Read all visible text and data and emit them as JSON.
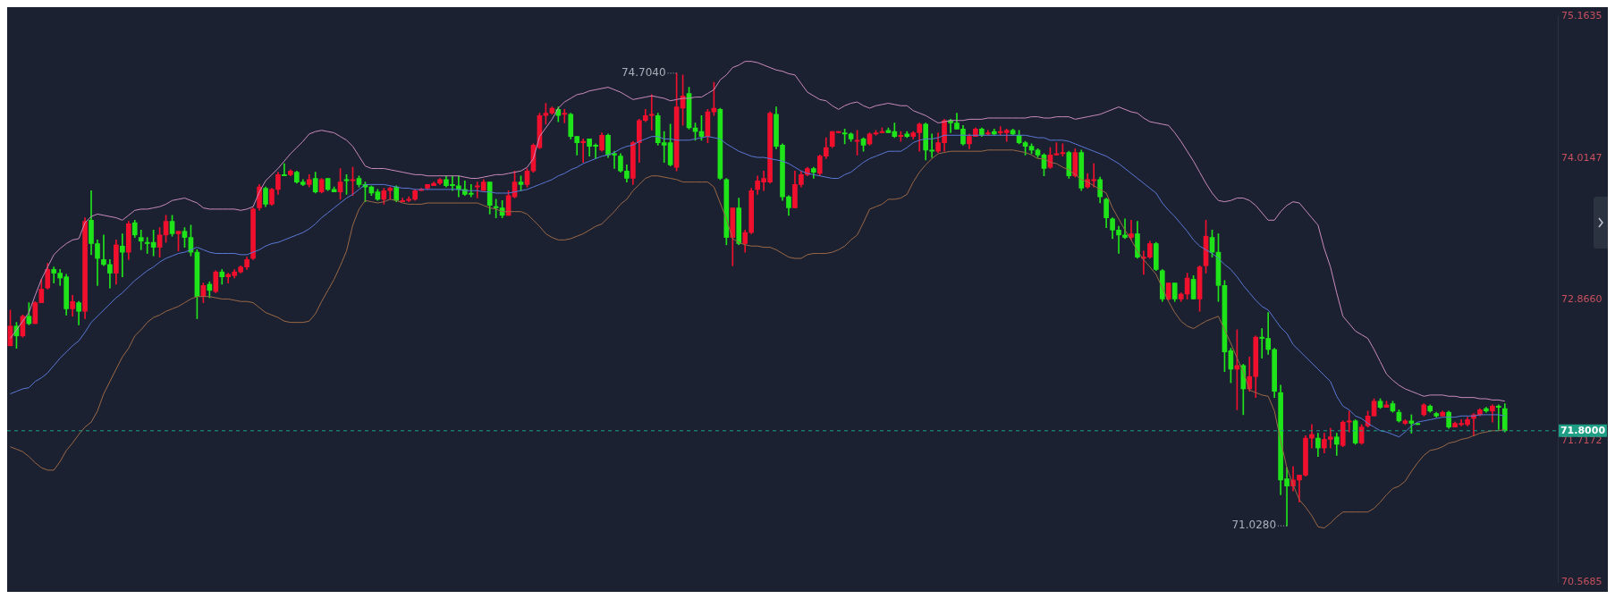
{
  "chart_data": {
    "type": "candlestick",
    "categories": [
      null,
      null,
      null,
      null,
      null,
      null,
      null,
      null,
      null,
      null,
      null,
      null,
      null,
      null,
      null,
      null,
      null,
      null,
      null,
      null,
      null,
      null,
      null,
      null,
      null,
      null,
      null,
      null,
      null,
      null,
      null,
      null,
      null,
      null,
      null,
      null,
      null,
      null,
      null,
      null,
      null,
      null,
      null,
      null,
      null,
      null,
      null,
      null,
      null,
      null,
      null,
      null,
      null,
      null,
      null,
      null,
      null,
      null,
      null,
      null,
      null,
      null,
      null,
      null,
      null,
      null,
      null,
      null,
      null,
      null,
      null,
      null,
      null,
      null,
      null,
      null,
      null,
      null,
      null,
      null,
      null,
      null,
      null,
      null,
      null,
      null,
      null,
      null,
      null,
      null,
      null,
      null,
      null,
      null,
      null,
      null,
      null,
      null,
      null,
      null,
      null,
      null,
      null,
      null,
      null,
      null,
      null,
      null,
      null,
      null,
      null,
      null,
      null,
      null,
      null,
      null,
      null,
      null,
      null,
      null,
      null,
      null,
      null,
      null,
      null,
      null,
      null,
      null,
      null,
      null,
      null,
      null,
      null,
      null,
      null,
      null,
      null,
      null,
      null,
      null,
      null,
      null,
      null,
      null,
      null,
      null,
      null,
      null,
      null,
      null,
      null,
      null,
      null,
      null,
      null,
      null,
      null,
      null,
      null,
      null,
      null,
      null,
      null,
      null,
      null,
      null,
      null,
      null,
      null,
      null,
      null,
      null,
      null,
      null,
      null,
      null,
      null,
      null,
      null,
      null,
      null,
      null,
      null,
      null,
      null,
      null,
      null,
      null,
      null,
      null,
      null,
      null,
      null,
      null,
      null,
      null,
      null,
      null,
      null,
      null,
      null,
      null,
      null,
      null,
      null,
      null,
      null,
      null,
      null,
      null,
      null,
      null,
      null,
      null,
      null,
      null,
      null,
      null,
      null,
      null,
      null,
      null,
      null,
      null,
      null,
      null,
      null,
      null,
      null,
      null,
      null,
      null,
      null,
      null,
      null,
      null,
      null,
      null,
      null,
      null,
      null
    ],
    "colors": [
      "#f0102d",
      "#1fe41a",
      "#f0102d",
      "#1fe41a",
      "#f0102d",
      "#f0102d",
      "#f0102d",
      "#1fe41a",
      "#1fe41a",
      "#1fe41a",
      "#f0102d",
      "#1fe41a",
      "#f0102d",
      "#1fe41a",
      "#1fe41a",
      "#1fe41a",
      "#1fe41a",
      "#f0102d",
      "#1fe41a",
      "#f0102d",
      "#1fe41a",
      "#1fe41a",
      "#1fe41a",
      "#1fe41a",
      "#f0102d",
      "#f0102d",
      "#1fe41a",
      "#f0102d",
      "#1fe41a",
      "#1fe41a",
      "#1fe41a",
      "#f0102d",
      "#1fe41a",
      "#f0102d",
      "#1fe41a",
      "#f0102d",
      "#f0102d",
      "#f0102d",
      "#f0102d",
      "#f0102d",
      "#f0102d",
      "#1fe41a",
      "#f0102d",
      "#f0102d",
      "#1fe41a",
      "#f0102d",
      "#1fe41a",
      "#1fe41a",
      "#f0102d",
      "#1fe41a",
      "#f0102d",
      "#1fe41a",
      "#1fe41a",
      "#f0102d",
      "#1fe41a",
      "#f0102d",
      "#1fe41a",
      "#1fe41a",
      "#1fe41a",
      "#1fe41a",
      "#f0102d",
      "#f0102d",
      "#1fe41a",
      "#f0102d",
      "#f0102d",
      "#f0102d",
      "#f0102d",
      "#f0102d",
      "#f0102d",
      "#f0102d",
      "#1fe41a",
      "#1fe41a",
      "#1fe41a",
      "#1fe41a",
      "#1fe41a",
      "#f0102d",
      "#f0102d",
      "#1fe41a",
      "#1fe41a",
      "#1fe41a",
      "#f0102d",
      "#f0102d",
      "#1fe41a",
      "#f0102d",
      "#f0102d",
      "#f0102d",
      "#f0102d",
      "#f0102d",
      "#1fe41a",
      "#f0102d",
      "#1fe41a",
      "#1fe41a",
      "#f0102d",
      "#1fe41a",
      "#1fe41a",
      "#f0102d",
      "#1fe41a",
      "#1fe41a",
      "#1fe41a",
      "#1fe41a",
      "#f0102d",
      "#f0102d",
      "#f0102d",
      "#f0102d",
      "#1fe41a",
      "#1fe41a",
      "#1fe41a",
      "#f0102d",
      "#f0102d",
      "#1fe41a",
      "#1fe41a",
      "#1fe41a",
      "#f0102d",
      "#f0102d",
      "#1fe41a",
      "#1fe41a",
      "#f0102d",
      "#1fe41a",
      "#f0102d",
      "#f0102d",
      "#f0102d",
      "#f0102d",
      "#f0102d",
      "#1fe41a",
      "#1fe41a",
      "#1fe41a",
      "#f0102d",
      "#f0102d",
      "#f0102d",
      "#1fe41a",
      "#f0102d",
      "#f0102d",
      "#f0102d",
      "#f0102d",
      "#1fe41a",
      "#1fe41a",
      "#f0102d",
      "#1fe41a",
      "#f0102d",
      "#f0102d",
      "#f0102d",
      "#1fe41a",
      "#1fe41a",
      "#f0102d",
      "#1fe41a",
      "#f0102d",
      "#f0102d",
      "#1fe41a",
      "#1fe41a",
      "#f0102d",
      "#f0102d",
      "#1fe41a",
      "#1fe41a",
      "#1fe41a",
      "#f0102d",
      "#f0102d",
      "#1fe41a",
      "#f0102d",
      "#1fe41a",
      "#f0102d",
      "#f0102d",
      "#1fe41a",
      "#1fe41a",
      "#1fe41a",
      "#1fe41a",
      "#1fe41a",
      "#1fe41a",
      "#f0102d",
      "#f0102d",
      "#f0102d",
      "#1fe41a",
      "#f0102d",
      "#1fe41a",
      "#f0102d",
      "#f0102d",
      "#1fe41a",
      "#1fe41a",
      "#1fe41a",
      "#1fe41a",
      "#1fe41a",
      "#f0102d",
      "#1fe41a",
      "#f0102d",
      "#f0102d",
      "#1fe41a",
      "#1fe41a",
      "#f0102d",
      "#1fe41a",
      "#f0102d",
      "#f0102d",
      "#1fe41a",
      "#f0102d",
      "#f0102d",
      "#1fe41a",
      "#1fe41a",
      "#1fe41a",
      "#1fe41a",
      "#f0102d",
      "#1fe41a",
      "#f0102d",
      "#f0102d",
      "#1fe41a",
      "#1fe41a",
      "#1fe41a",
      "#1fe41a",
      "#1fe41a",
      "#f0102d",
      "#f0102d",
      "#f0102d",
      "#f0102d",
      "#1fe41a",
      "#f0102d",
      "#f0102d",
      "#1fe41a",
      "#f0102d",
      "#f0102d",
      "#1fe41a",
      "#f0102d",
      "#f0102d",
      "#f0102d",
      "#1fe41a",
      "#f0102d",
      "#1fe41a",
      "#1fe41a",
      "#f0102d",
      "#1fe41a",
      "#1fe41a",
      "#f0102d",
      "#1fe41a",
      "#1fe41a",
      "#f0102d",
      "#1fe41a",
      "#f0102d",
      "#f0102d",
      "#f0102d",
      "#f0102d",
      "#f0102d",
      "#1fe41a",
      "#f0102d",
      "#1fe41a",
      "#1fe41a"
    ],
    "ohlc": [
      [
        72.49,
        72.78,
        72.49,
        72.65
      ],
      [
        72.65,
        72.68,
        72.47,
        72.57
      ],
      [
        72.57,
        72.74,
        72.56,
        72.73
      ],
      [
        72.73,
        72.84,
        72.66,
        72.67
      ],
      [
        72.67,
        72.85,
        72.67,
        72.84
      ],
      [
        72.84,
        73.03,
        72.84,
        72.95
      ],
      [
        72.96,
        73.16,
        72.95,
        73.11
      ],
      [
        73.11,
        73.13,
        73.0,
        73.08
      ],
      [
        73.08,
        73.11,
        72.98,
        73.04
      ],
      [
        73.05,
        73.07,
        72.74,
        72.79
      ],
      [
        72.79,
        72.9,
        72.73,
        72.85
      ],
      [
        72.84,
        72.85,
        72.66,
        72.77
      ],
      [
        72.77,
        73.53,
        72.71,
        73.5
      ],
      [
        73.51,
        73.75,
        73.23,
        73.32
      ],
      [
        73.32,
        73.35,
        72.98,
        73.2
      ],
      [
        73.19,
        73.39,
        73.14,
        73.15
      ],
      [
        73.15,
        73.19,
        72.96,
        73.08
      ],
      [
        73.08,
        73.35,
        72.99,
        73.31
      ],
      [
        73.3,
        73.4,
        73.05,
        73.25
      ],
      [
        73.25,
        73.5,
        73.19,
        73.48
      ],
      [
        73.49,
        73.51,
        73.37,
        73.39
      ],
      [
        73.37,
        73.43,
        73.27,
        73.34
      ],
      [
        73.33,
        73.37,
        73.24,
        73.32
      ],
      [
        73.33,
        73.43,
        73.22,
        73.29
      ],
      [
        73.29,
        73.45,
        73.21,
        73.39
      ],
      [
        73.39,
        73.55,
        73.33,
        73.5
      ],
      [
        73.5,
        73.55,
        73.38,
        73.4
      ],
      [
        73.4,
        73.42,
        73.26,
        73.42
      ],
      [
        73.42,
        73.45,
        73.29,
        73.37
      ],
      [
        73.37,
        73.47,
        73.22,
        73.25
      ],
      [
        73.25,
        73.27,
        72.71,
        72.89
      ],
      [
        72.89,
        73.0,
        72.84,
        72.98
      ],
      [
        72.99,
        73.01,
        72.88,
        72.94
      ],
      [
        72.93,
        73.1,
        72.92,
        73.09
      ],
      [
        73.09,
        73.11,
        72.99,
        73.05
      ],
      [
        73.05,
        73.08,
        73.0,
        73.07
      ],
      [
        73.06,
        73.11,
        73.04,
        73.09
      ],
      [
        73.09,
        73.14,
        73.08,
        73.13
      ],
      [
        73.13,
        73.21,
        73.11,
        73.19
      ],
      [
        73.2,
        73.61,
        73.19,
        73.6
      ],
      [
        73.61,
        73.8,
        73.59,
        73.78
      ],
      [
        73.77,
        73.78,
        73.62,
        73.64
      ],
      [
        73.64,
        73.77,
        73.63,
        73.76
      ],
      [
        73.76,
        73.9,
        73.72,
        73.88
      ],
      [
        73.88,
        73.97,
        73.87,
        73.87
      ],
      [
        73.88,
        73.92,
        73.87,
        73.91
      ],
      [
        73.9,
        73.91,
        73.81,
        73.82
      ],
      [
        73.82,
        73.84,
        73.79,
        73.8
      ],
      [
        73.8,
        73.88,
        73.78,
        73.84
      ],
      [
        73.85,
        73.9,
        73.73,
        73.74
      ],
      [
        73.74,
        73.85,
        73.73,
        73.84
      ],
      [
        73.85,
        73.85,
        73.75,
        73.76
      ],
      [
        73.76,
        73.78,
        73.74,
        73.74
      ],
      [
        73.74,
        73.93,
        73.68,
        73.82
      ],
      [
        73.84,
        73.88,
        73.72,
        73.83
      ],
      [
        73.83,
        73.94,
        73.71,
        73.84
      ],
      [
        73.85,
        73.87,
        73.78,
        73.8
      ],
      [
        73.8,
        73.82,
        73.66,
        73.78
      ],
      [
        73.78,
        73.79,
        73.71,
        73.73
      ],
      [
        73.74,
        73.76,
        73.67,
        73.68
      ],
      [
        73.68,
        73.77,
        73.64,
        73.75
      ],
      [
        73.75,
        73.78,
        73.68,
        73.77
      ],
      [
        73.78,
        73.79,
        73.66,
        73.67
      ],
      [
        73.66,
        73.69,
        73.66,
        73.67
      ],
      [
        73.67,
        73.7,
        73.66,
        73.68
      ],
      [
        73.68,
        73.76,
        73.67,
        73.75
      ],
      [
        73.75,
        73.77,
        73.75,
        73.76
      ],
      [
        73.77,
        73.8,
        73.76,
        73.8
      ],
      [
        73.79,
        73.82,
        73.79,
        73.81
      ],
      [
        73.81,
        73.85,
        73.8,
        73.84
      ],
      [
        73.84,
        73.87,
        73.78,
        73.79
      ],
      [
        73.8,
        73.87,
        73.75,
        73.79
      ],
      [
        73.79,
        73.87,
        73.7,
        73.76
      ],
      [
        73.76,
        73.83,
        73.71,
        73.72
      ],
      [
        73.73,
        73.8,
        73.7,
        73.72
      ],
      [
        73.78,
        73.82,
        73.69,
        73.79
      ],
      [
        73.75,
        73.84,
        73.75,
        73.82
      ],
      [
        73.82,
        73.82,
        73.56,
        73.63
      ],
      [
        73.62,
        73.68,
        73.53,
        73.61
      ],
      [
        73.61,
        73.67,
        73.53,
        73.55
      ],
      [
        73.55,
        73.75,
        73.55,
        73.71
      ],
      [
        73.7,
        73.91,
        73.69,
        73.82
      ],
      [
        73.82,
        73.87,
        73.75,
        73.8
      ],
      [
        73.8,
        73.93,
        73.78,
        73.91
      ],
      [
        73.91,
        74.13,
        73.9,
        74.12
      ],
      [
        74.1,
        74.38,
        74.09,
        74.36
      ],
      [
        74.36,
        74.46,
        74.29,
        74.38
      ],
      [
        74.38,
        74.43,
        74.37,
        74.42
      ],
      [
        74.41,
        74.43,
        74.31,
        74.36
      ],
      [
        74.37,
        74.41,
        74.3,
        74.38
      ],
      [
        74.37,
        74.38,
        74.17,
        74.19
      ],
      [
        74.19,
        74.19,
        74.04,
        74.14
      ],
      [
        74.14,
        74.17,
        73.98,
        74.15
      ],
      [
        74.17,
        74.17,
        74.03,
        74.11
      ],
      [
        74.12,
        74.13,
        74.01,
        74.11
      ],
      [
        74.08,
        74.22,
        74.07,
        74.2
      ],
      [
        74.2,
        74.21,
        74.02,
        74.04
      ],
      [
        74.05,
        74.07,
        73.93,
        74.04
      ],
      [
        74.03,
        74.05,
        73.9,
        73.91
      ],
      [
        73.91,
        73.96,
        73.82,
        73.85
      ],
      [
        73.85,
        74.15,
        73.8,
        74.14
      ],
      [
        74.14,
        74.33,
        73.98,
        74.32
      ],
      [
        74.32,
        74.41,
        74.31,
        74.36
      ],
      [
        74.36,
        74.53,
        74.24,
        74.37
      ],
      [
        74.36,
        74.38,
        74.12,
        74.14
      ],
      [
        74.14,
        74.23,
        73.98,
        74.12
      ],
      [
        74.14,
        74.29,
        73.95,
        73.96
      ],
      [
        73.94,
        74.704,
        73.91,
        74.43
      ],
      [
        74.42,
        74.69,
        74.28,
        74.52
      ],
      [
        74.54,
        74.59,
        74.25,
        74.26
      ],
      [
        74.26,
        74.3,
        74.16,
        74.23
      ],
      [
        74.23,
        74.36,
        74.16,
        74.19
      ],
      [
        74.19,
        74.41,
        74.14,
        74.39
      ],
      [
        74.39,
        74.63,
        74.36,
        74.42
      ],
      [
        74.41,
        74.42,
        73.84,
        73.85
      ],
      [
        73.84,
        73.85,
        73.31,
        73.37
      ],
      [
        73.37,
        73.61,
        73.14,
        73.61
      ],
      [
        73.61,
        73.69,
        73.31,
        73.32
      ],
      [
        73.32,
        73.43,
        73.25,
        73.41
      ],
      [
        73.41,
        73.77,
        73.4,
        73.75
      ],
      [
        73.76,
        73.87,
        73.72,
        73.83
      ],
      [
        73.82,
        73.91,
        73.75,
        73.85
      ],
      [
        73.82,
        74.39,
        73.81,
        74.38
      ],
      [
        74.37,
        74.43,
        74.09,
        74.11
      ],
      [
        74.12,
        74.13,
        73.67,
        73.7
      ],
      [
        73.7,
        73.71,
        73.55,
        73.61
      ],
      [
        73.61,
        73.91,
        73.61,
        73.8
      ],
      [
        73.8,
        73.91,
        73.78,
        73.88
      ],
      [
        73.88,
        73.94,
        73.87,
        73.93
      ],
      [
        73.93,
        73.94,
        73.85,
        73.9
      ],
      [
        73.89,
        74.04,
        73.87,
        74.03
      ],
      [
        74.03,
        74.18,
        74.01,
        74.1
      ],
      [
        74.11,
        74.23,
        74.1,
        74.23
      ],
      [
        74.22,
        74.23,
        74.22,
        74.23
      ],
      [
        74.22,
        74.25,
        74.13,
        74.21
      ],
      [
        74.21,
        74.22,
        74.15,
        74.17
      ],
      [
        74.15,
        74.24,
        74.04,
        74.16
      ],
      [
        74.17,
        74.18,
        74.07,
        74.12
      ],
      [
        74.13,
        74.22,
        74.12,
        74.21
      ],
      [
        74.21,
        74.24,
        74.2,
        74.22
      ],
      [
        74.22,
        74.26,
        74.22,
        74.23
      ],
      [
        74.24,
        74.26,
        74.22,
        74.22
      ],
      [
        74.23,
        74.3,
        74.18,
        74.19
      ],
      [
        74.19,
        74.23,
        74.15,
        74.2
      ],
      [
        74.21,
        74.23,
        74.18,
        74.19
      ],
      [
        74.19,
        74.23,
        74.17,
        74.22
      ],
      [
        74.22,
        74.3,
        74.07,
        74.29
      ],
      [
        74.29,
        74.3,
        74.0,
        74.08
      ],
      [
        74.08,
        74.21,
        74.02,
        74.07
      ],
      [
        74.07,
        74.22,
        74.06,
        74.14
      ],
      [
        74.14,
        74.33,
        74.07,
        74.32
      ],
      [
        74.32,
        74.33,
        74.22,
        74.3
      ],
      [
        74.3,
        74.38,
        74.25,
        74.25
      ],
      [
        74.25,
        74.28,
        74.12,
        74.13
      ],
      [
        74.13,
        74.21,
        74.09,
        74.19
      ],
      [
        74.19,
        74.26,
        74.19,
        74.25
      ],
      [
        74.25,
        74.26,
        74.19,
        74.2
      ],
      [
        74.21,
        74.24,
        74.2,
        74.22
      ],
      [
        74.23,
        74.25,
        74.2,
        74.21
      ],
      [
        74.22,
        74.27,
        74.2,
        74.23
      ],
      [
        74.22,
        74.25,
        74.15,
        74.24
      ],
      [
        74.24,
        74.25,
        74.2,
        74.21
      ],
      [
        74.2,
        74.24,
        74.13,
        74.14
      ],
      [
        74.14,
        74.15,
        74.04,
        74.11
      ],
      [
        74.11,
        74.13,
        74.05,
        74.08
      ],
      [
        74.08,
        74.09,
        74.02,
        74.04
      ],
      [
        74.04,
        74.05,
        73.87,
        73.93
      ],
      [
        73.94,
        74.1,
        73.93,
        74.04
      ],
      [
        74.04,
        74.14,
        74.04,
        74.05
      ],
      [
        74.05,
        74.13,
        74.03,
        74.06
      ],
      [
        74.06,
        74.07,
        73.85,
        73.87
      ],
      [
        73.87,
        74.09,
        73.86,
        74.06
      ],
      [
        74.06,
        74.08,
        73.75,
        73.77
      ],
      [
        73.78,
        73.89,
        73.77,
        73.84
      ],
      [
        73.83,
        73.97,
        73.78,
        73.84
      ],
      [
        73.84,
        73.86,
        73.65,
        73.7
      ],
      [
        73.68,
        73.69,
        73.45,
        73.53
      ],
      [
        73.52,
        73.53,
        73.36,
        73.43
      ],
      [
        73.43,
        73.46,
        73.24,
        73.39
      ],
      [
        73.39,
        73.52,
        73.36,
        73.37
      ],
      [
        73.37,
        73.51,
        73.35,
        73.4
      ],
      [
        73.4,
        73.5,
        73.2,
        73.21
      ],
      [
        73.2,
        73.26,
        73.07,
        73.21
      ],
      [
        73.21,
        73.34,
        73.2,
        73.32
      ],
      [
        73.32,
        73.33,
        73.1,
        73.11
      ],
      [
        73.1,
        73.11,
        72.85,
        72.87
      ],
      [
        72.87,
        73.0,
        72.86,
        73.0
      ],
      [
        73.0,
        73.0,
        72.85,
        72.87
      ],
      [
        72.87,
        72.92,
        72.85,
        72.91
      ],
      [
        72.91,
        73.08,
        72.87,
        73.04
      ],
      [
        73.03,
        73.06,
        72.87,
        72.87
      ],
      [
        72.87,
        73.14,
        72.77,
        73.13
      ],
      [
        73.14,
        73.51,
        73.08,
        73.38
      ],
      [
        73.37,
        73.43,
        73.21,
        73.25
      ],
      [
        73.25,
        73.4,
        72.85,
        72.98
      ],
      [
        72.98,
        73.02,
        72.28,
        72.44
      ],
      [
        72.45,
        72.47,
        72.19,
        72.3
      ],
      [
        72.3,
        72.62,
        71.97,
        72.33
      ],
      [
        72.33,
        72.34,
        71.93,
        72.14
      ],
      [
        72.14,
        72.4,
        72.12,
        72.24
      ],
      [
        72.24,
        72.57,
        72.07,
        72.56
      ],
      [
        72.56,
        72.63,
        72.39,
        72.55
      ],
      [
        72.55,
        72.76,
        72.42,
        72.46
      ],
      [
        72.46,
        72.47,
        72.07,
        72.12
      ],
      [
        72.11,
        72.17,
        71.28,
        71.4
      ],
      [
        71.41,
        71.5,
        71.028,
        71.35
      ],
      [
        71.35,
        71.51,
        71.31,
        71.4
      ],
      [
        71.4,
        71.44,
        71.22,
        71.44
      ],
      [
        71.44,
        71.76,
        71.43,
        71.74
      ],
      [
        71.74,
        71.85,
        71.66,
        71.77
      ],
      [
        71.74,
        71.78,
        71.59,
        71.66
      ],
      [
        71.66,
        71.78,
        71.62,
        71.73
      ],
      [
        71.73,
        71.82,
        71.66,
        71.75
      ],
      [
        71.75,
        71.78,
        71.6,
        71.69
      ],
      [
        71.68,
        71.88,
        71.67,
        71.87
      ],
      [
        71.87,
        71.96,
        71.79,
        71.88
      ],
      [
        71.88,
        71.89,
        71.69,
        71.7
      ],
      [
        71.7,
        71.85,
        71.69,
        71.83
      ],
      [
        71.84,
        71.96,
        71.83,
        71.92
      ],
      [
        71.92,
        72.06,
        71.92,
        72.04
      ],
      [
        72.04,
        72.06,
        71.98,
        71.99
      ],
      [
        71.99,
        72.04,
        71.99,
        72.01
      ],
      [
        72.02,
        72.04,
        71.95,
        71.96
      ],
      [
        71.95,
        71.97,
        71.87,
        71.88
      ],
      [
        71.86,
        71.89,
        71.85,
        71.88
      ],
      [
        71.88,
        71.93,
        71.78,
        71.86
      ],
      [
        71.86,
        71.86,
        71.85,
        71.85
      ],
      [
        71.93,
        72.02,
        71.92,
        72.01
      ],
      [
        72.0,
        72.01,
        71.95,
        71.96
      ],
      [
        71.94,
        71.95,
        71.91,
        71.92
      ],
      [
        71.92,
        71.96,
        71.92,
        71.95
      ],
      [
        71.95,
        71.96,
        71.82,
        71.83
      ],
      [
        71.83,
        71.87,
        71.83,
        71.86
      ],
      [
        71.85,
        71.89,
        71.84,
        71.86
      ],
      [
        71.85,
        71.91,
        71.84,
        71.89
      ],
      [
        71.9,
        71.94,
        71.76,
        71.93
      ],
      [
        71.93,
        71.98,
        71.92,
        71.97
      ],
      [
        71.98,
        71.99,
        71.95,
        71.96
      ],
      [
        71.96,
        72.01,
        71.87,
        72.0
      ],
      [
        72.0,
        72.01,
        71.81,
        71.99
      ],
      [
        71.98,
        72.02,
        71.79,
        71.8
      ]
    ],
    "series": [
      {
        "type": "line",
        "color": "#c98bbd",
        "values": [
          72.55,
          72.62,
          72.69,
          72.76,
          72.9,
          73.03,
          73.13,
          73.23,
          73.28,
          73.32,
          73.35,
          73.36,
          73.49,
          73.54,
          73.56,
          73.55,
          73.54,
          73.53,
          73.51,
          73.55,
          73.59,
          73.6,
          73.6,
          73.61,
          73.62,
          73.64,
          73.67,
          73.68,
          73.69,
          73.67,
          73.65,
          73.61,
          73.6,
          73.6,
          73.6,
          73.6,
          73.6,
          73.59,
          73.6,
          73.62,
          73.74,
          73.83,
          73.88,
          73.93,
          73.99,
          74.05,
          74.1,
          74.15,
          74.21,
          74.23,
          74.24,
          74.23,
          74.22,
          74.19,
          74.16,
          74.11,
          74.03,
          73.95,
          73.93,
          73.93,
          73.93,
          73.92,
          73.91,
          73.9,
          73.89,
          73.88,
          73.88,
          73.87,
          73.87,
          73.87,
          73.87,
          73.87,
          73.87,
          73.86,
          73.85,
          73.85,
          73.86,
          73.87,
          73.88,
          73.88,
          73.89,
          73.9,
          73.91,
          73.94,
          74.01,
          74.19,
          74.26,
          74.33,
          74.42,
          74.47,
          74.5,
          74.53,
          74.54,
          74.56,
          74.57,
          74.58,
          74.59,
          74.57,
          74.55,
          74.52,
          74.49,
          74.5,
          74.51,
          74.52,
          74.51,
          74.5,
          74.48,
          74.49,
          74.5,
          74.5,
          74.51,
          74.51,
          74.54,
          74.57,
          74.65,
          74.69,
          74.75,
          74.77,
          74.8,
          74.8,
          74.79,
          74.77,
          74.75,
          74.73,
          74.72,
          74.7,
          74.69,
          74.62,
          74.55,
          74.52,
          74.49,
          74.48,
          74.44,
          74.41,
          74.44,
          74.46,
          74.47,
          74.44,
          74.42,
          74.44,
          74.45,
          74.46,
          74.45,
          74.44,
          74.44,
          74.4,
          74.38,
          74.36,
          74.33,
          74.3,
          74.31,
          74.32,
          74.32,
          74.32,
          74.33,
          74.33,
          74.33,
          74.34,
          74.34,
          74.34,
          74.34,
          74.34,
          74.34,
          74.34,
          74.35,
          74.35,
          74.34,
          74.34,
          74.35,
          74.35,
          74.35,
          74.33,
          74.34,
          74.35,
          74.36,
          74.37,
          74.39,
          74.41,
          74.43,
          74.41,
          74.39,
          74.38,
          74.34,
          74.31,
          74.3,
          74.29,
          74.28,
          74.22,
          74.15,
          74.07,
          73.99,
          73.9,
          73.81,
          73.73,
          73.67,
          73.66,
          73.67,
          73.69,
          73.69,
          73.67,
          73.63,
          73.57,
          73.51,
          73.51,
          73.58,
          73.63,
          73.66,
          73.65,
          73.59,
          73.53,
          73.47,
          73.28,
          73.13,
          72.92,
          72.73,
          72.67,
          72.61,
          72.58,
          72.55,
          72.46,
          72.36,
          72.26,
          72.21,
          72.17,
          72.14,
          72.12,
          72.1,
          72.08,
          72.09,
          72.09,
          72.09,
          72.08,
          72.08,
          72.07,
          72.07,
          72.07,
          72.06,
          72.06,
          72.05,
          72.05,
          72.04
        ]
      },
      {
        "type": "line",
        "color": "#5a78d6",
        "values": [
          72.1,
          72.12,
          72.14,
          72.15,
          72.2,
          72.23,
          72.27,
          72.33,
          72.39,
          72.44,
          72.49,
          72.53,
          72.6,
          72.68,
          72.73,
          72.78,
          72.83,
          72.88,
          72.92,
          72.97,
          73.02,
          73.06,
          73.1,
          73.13,
          73.17,
          73.2,
          73.22,
          73.24,
          73.25,
          73.27,
          73.29,
          73.27,
          73.25,
          73.24,
          73.24,
          73.24,
          73.24,
          73.23,
          73.23,
          73.25,
          73.27,
          73.3,
          73.32,
          73.33,
          73.35,
          73.37,
          73.39,
          73.41,
          73.44,
          73.48,
          73.53,
          73.57,
          73.61,
          73.65,
          73.69,
          73.72,
          73.76,
          73.8,
          73.8,
          73.8,
          73.8,
          73.79,
          73.78,
          73.77,
          73.77,
          73.76,
          73.76,
          73.76,
          73.76,
          73.76,
          73.76,
          73.76,
          73.76,
          73.75,
          73.75,
          73.75,
          73.74,
          73.74,
          73.73,
          73.73,
          73.73,
          73.74,
          73.75,
          73.76,
          73.78,
          73.8,
          73.82,
          73.84,
          73.87,
          73.89,
          73.92,
          73.94,
          73.97,
          73.99,
          74.01,
          74.03,
          74.04,
          74.06,
          74.09,
          74.11,
          74.12,
          74.15,
          74.17,
          74.19,
          74.19,
          74.17,
          74.17,
          74.16,
          74.16,
          74.16,
          74.17,
          74.18,
          74.19,
          74.18,
          74.17,
          74.13,
          74.1,
          74.07,
          74.05,
          74.03,
          74.02,
          74.02,
          74.01,
          74.0,
          73.99,
          73.97,
          73.94,
          73.91,
          73.89,
          73.88,
          73.87,
          73.86,
          73.85,
          73.85,
          73.88,
          73.9,
          73.94,
          73.98,
          74.01,
          74.03,
          74.05,
          74.07,
          74.07,
          74.07,
          74.1,
          74.14,
          74.16,
          74.17,
          74.17,
          74.18,
          74.2,
          74.2,
          74.2,
          74.2,
          74.2,
          74.2,
          74.2,
          74.2,
          74.2,
          74.2,
          74.2,
          74.2,
          74.2,
          74.2,
          74.19,
          74.18,
          74.18,
          74.16,
          74.16,
          74.16,
          74.15,
          74.13,
          74.11,
          74.09,
          74.07,
          74.05,
          74.03,
          74.0,
          73.97,
          73.93,
          73.89,
          73.85,
          73.81,
          73.77,
          73.73,
          73.65,
          73.59,
          73.54,
          73.48,
          73.42,
          73.35,
          73.3,
          73.27,
          73.24,
          73.2,
          73.15,
          73.11,
          73.05,
          72.98,
          72.92,
          72.86,
          72.81,
          72.78,
          72.71,
          72.64,
          72.59,
          72.5,
          72.45,
          72.4,
          72.35,
          72.3,
          72.25,
          72.2,
          72.08,
          72.0,
          71.97,
          71.92,
          71.9,
          71.86,
          71.83,
          71.8,
          71.79,
          71.77,
          71.75,
          71.79,
          71.84,
          71.87,
          71.88,
          71.89,
          71.9,
          71.91,
          71.91,
          71.91,
          71.92,
          71.92,
          71.92,
          71.93,
          71.93,
          71.93,
          71.93,
          71.92
        ]
      },
      {
        "type": "line",
        "color": "#9a6848",
        "values": [
          71.67,
          71.65,
          71.63,
          71.59,
          71.54,
          71.5,
          71.48,
          71.48,
          71.55,
          71.64,
          71.7,
          71.77,
          71.83,
          71.87,
          71.96,
          72.1,
          72.2,
          72.3,
          72.4,
          72.47,
          72.57,
          72.62,
          72.68,
          72.72,
          72.74,
          72.77,
          72.79,
          72.81,
          72.84,
          72.87,
          72.89,
          72.89,
          72.89,
          72.88,
          72.87,
          72.87,
          72.86,
          72.85,
          72.85,
          72.84,
          72.8,
          72.76,
          72.74,
          72.72,
          72.69,
          72.68,
          72.68,
          72.68,
          72.69,
          72.75,
          72.85,
          72.94,
          73.03,
          73.14,
          73.26,
          73.47,
          73.6,
          73.67,
          73.66,
          73.65,
          73.66,
          73.68,
          73.67,
          73.65,
          73.64,
          73.64,
          73.64,
          73.65,
          73.65,
          73.65,
          73.65,
          73.65,
          73.65,
          73.65,
          73.65,
          73.65,
          73.63,
          73.61,
          73.6,
          73.58,
          73.58,
          73.58,
          73.58,
          73.56,
          73.51,
          73.46,
          73.4,
          73.37,
          73.35,
          73.35,
          73.36,
          73.38,
          73.4,
          73.43,
          73.46,
          73.48,
          73.53,
          73.58,
          73.64,
          73.68,
          73.75,
          73.8,
          73.85,
          73.87,
          73.87,
          73.86,
          73.85,
          73.84,
          73.82,
          73.82,
          73.82,
          73.82,
          73.82,
          73.78,
          73.65,
          73.52,
          73.36,
          73.33,
          73.31,
          73.3,
          73.3,
          73.29,
          73.29,
          73.27,
          73.24,
          73.21,
          73.2,
          73.2,
          73.23,
          73.24,
          73.24,
          73.24,
          73.25,
          73.27,
          73.3,
          73.35,
          73.39,
          73.49,
          73.6,
          73.62,
          73.64,
          73.68,
          73.68,
          73.69,
          73.72,
          73.82,
          73.9,
          73.96,
          74.01,
          74.05,
          74.06,
          74.07,
          74.07,
          74.07,
          74.07,
          74.07,
          74.07,
          74.08,
          74.08,
          74.08,
          74.08,
          74.08,
          74.07,
          74.06,
          74.04,
          74.01,
          74.01,
          73.98,
          73.97,
          73.94,
          73.92,
          73.88,
          73.84,
          73.82,
          73.79,
          73.76,
          73.73,
          73.61,
          73.52,
          73.43,
          73.35,
          73.26,
          73.19,
          73.13,
          73.07,
          72.96,
          72.85,
          72.76,
          72.69,
          72.65,
          72.63,
          72.66,
          72.69,
          72.71,
          72.73,
          72.62,
          72.51,
          72.39,
          72.28,
          72.13,
          72.11,
          72.09,
          72.08,
          71.96,
          71.72,
          71.5,
          71.36,
          71.24,
          71.18,
          71.11,
          71.02,
          71.01,
          71.05,
          71.1,
          71.14,
          71.14,
          71.14,
          71.14,
          71.14,
          71.17,
          71.22,
          71.28,
          71.33,
          71.35,
          71.39,
          71.47,
          71.54,
          71.6,
          71.64,
          71.65,
          71.67,
          71.7,
          71.71,
          71.73,
          71.74,
          71.76,
          71.78,
          71.79,
          71.8,
          71.8,
          71.81
        ]
      }
    ],
    "ylim": [
      70.5685,
      75.1635
    ],
    "yticks": [
      {
        "value": 70.5685,
        "label": "70.5685"
      },
      {
        "value": 71.7172,
        "label": "71.7172"
      },
      {
        "value": 72.866,
        "label": "72.8660"
      },
      {
        "value": 74.0147,
        "label": "74.0147"
      },
      {
        "value": 75.1635,
        "label": "75.1635"
      }
    ],
    "tick_labels": "y",
    "ref_lines": [
      {
        "axis": "y",
        "value": 71.8,
        "label": "71.8000",
        "color": "#1f9e86",
        "line_style": "dashed"
      }
    ],
    "annotations": [
      "74.7040",
      "71.0280"
    ]
  }
}
